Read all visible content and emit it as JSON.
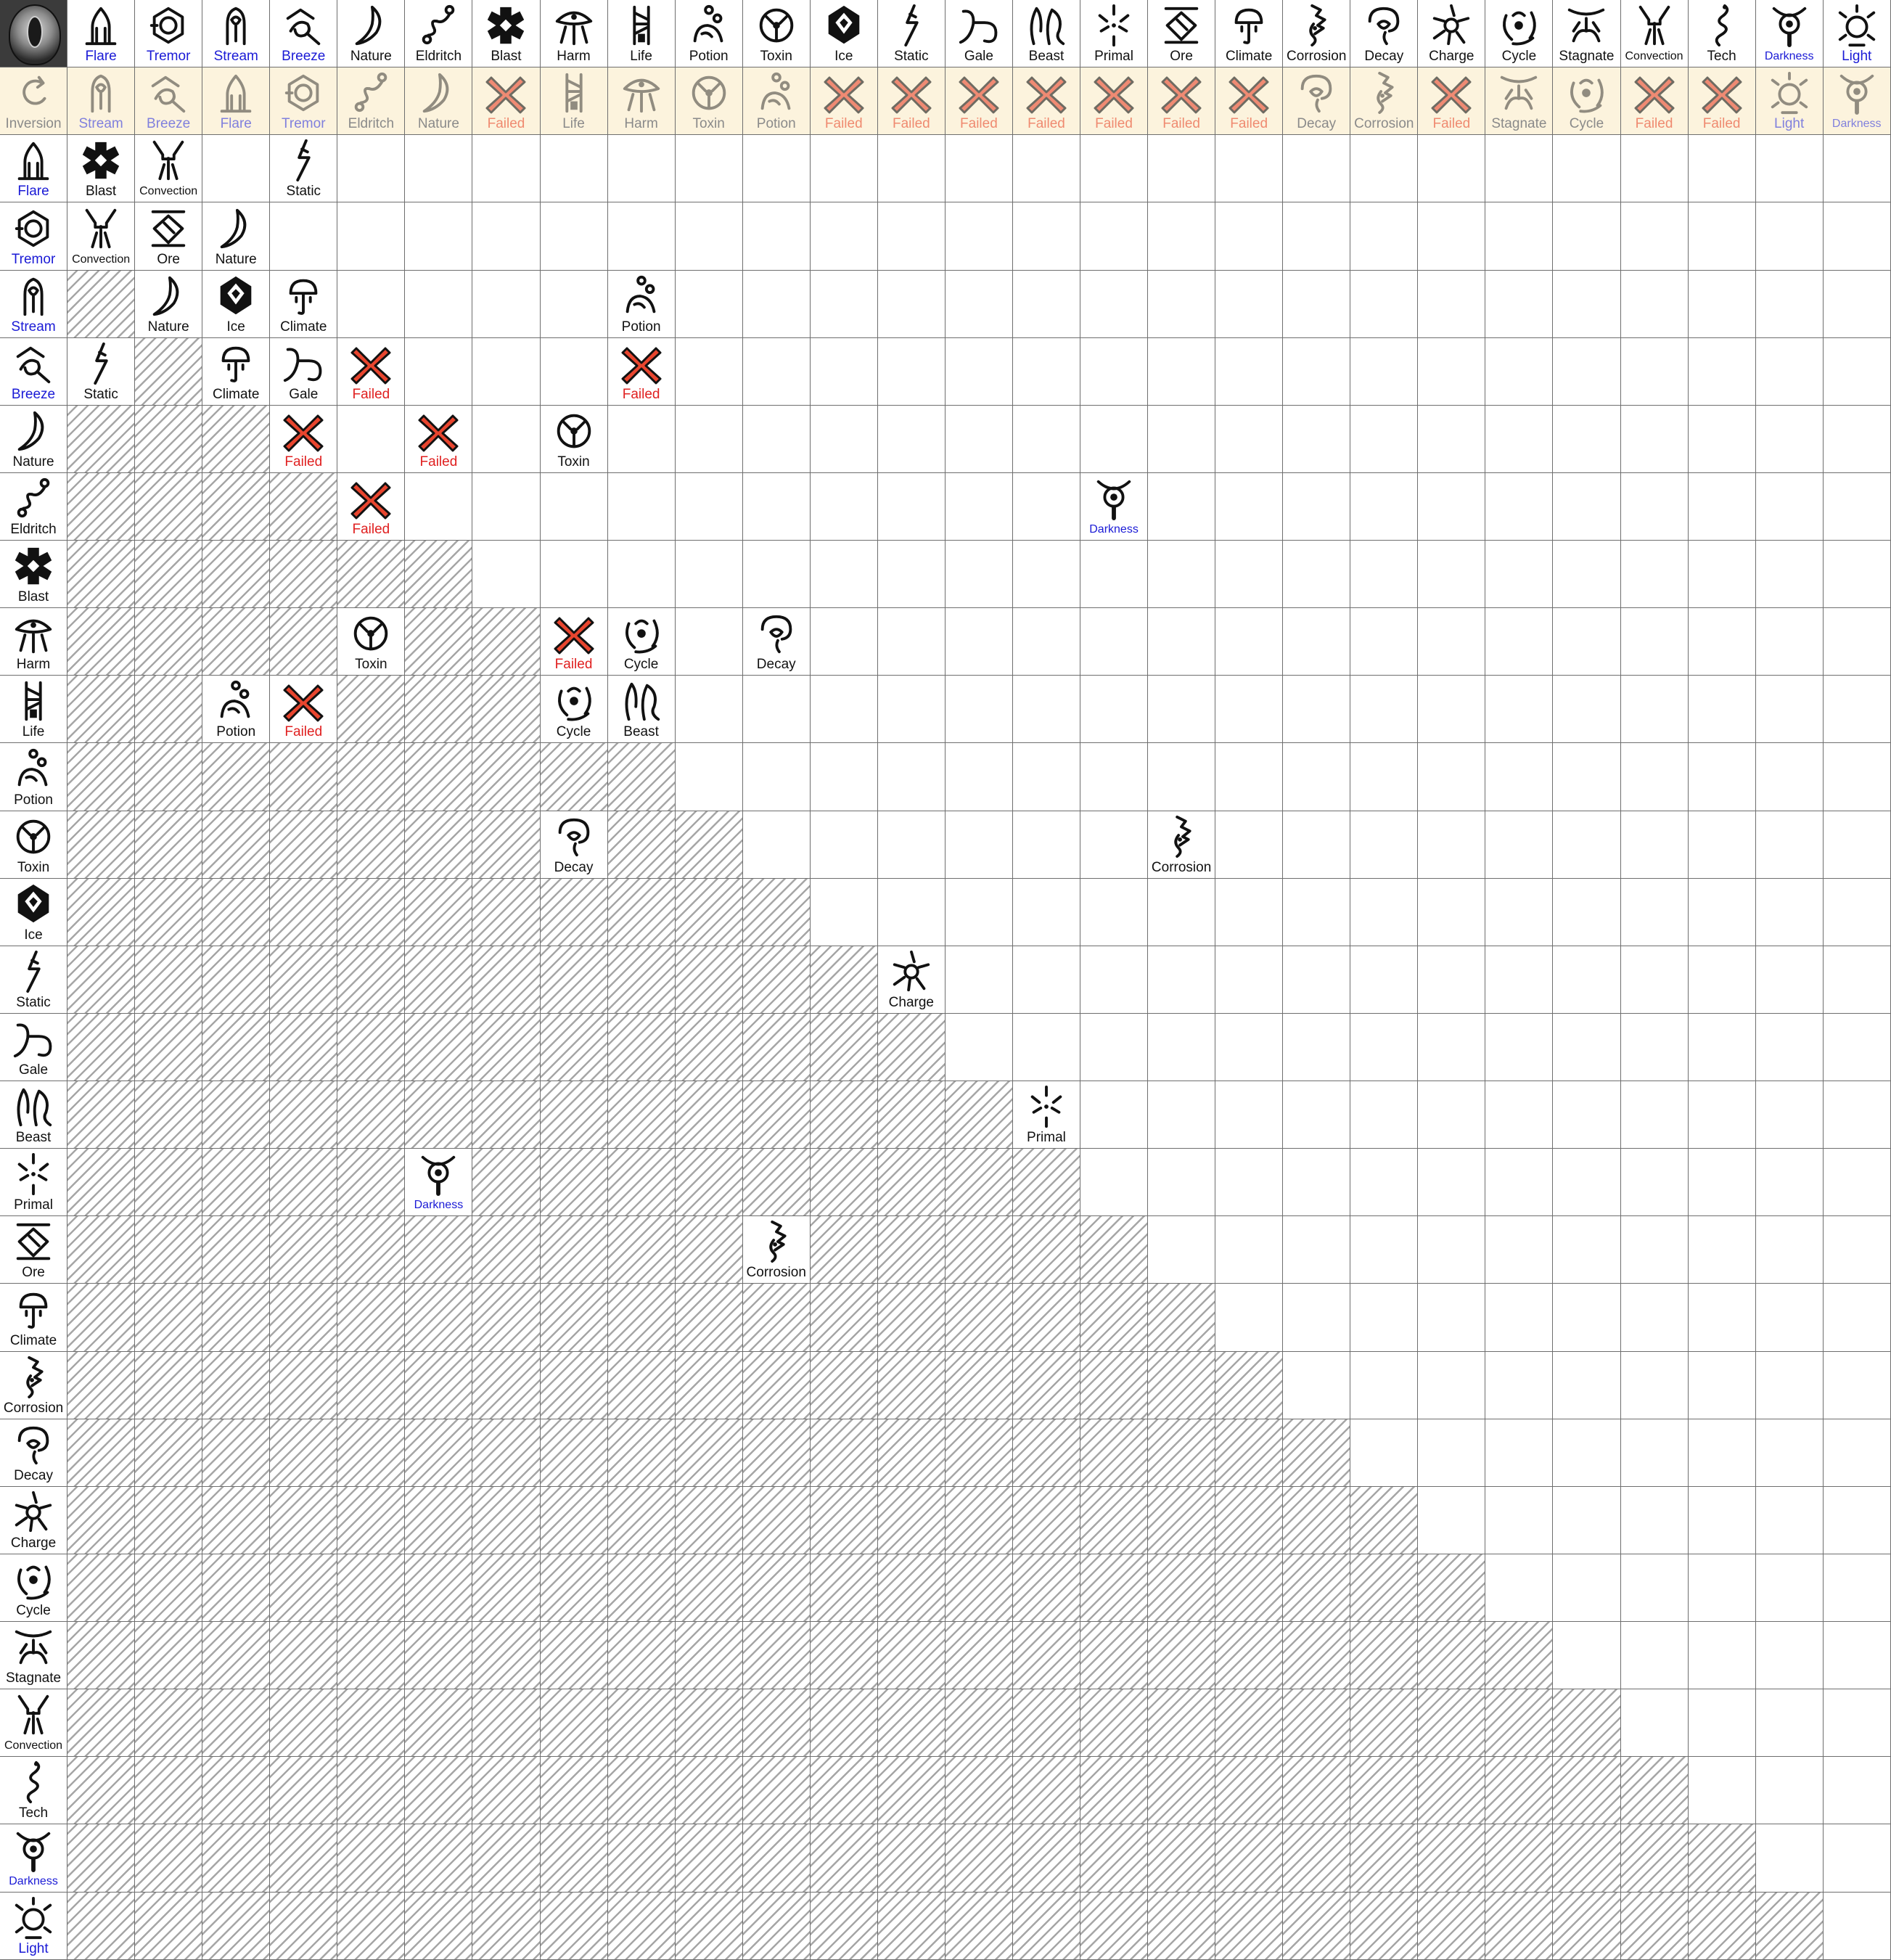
{
  "corner": {
    "icon": "eye-inversion-icon"
  },
  "elements": [
    {
      "name": "Flare",
      "color": "blue",
      "icon": "flare-icon"
    },
    {
      "name": "Tremor",
      "color": "blue",
      "icon": "tremor-icon"
    },
    {
      "name": "Stream",
      "color": "blue",
      "icon": "stream-icon"
    },
    {
      "name": "Breeze",
      "color": "blue",
      "icon": "breeze-icon"
    },
    {
      "name": "Nature",
      "color": "black",
      "icon": "nature-icon"
    },
    {
      "name": "Eldritch",
      "color": "black",
      "icon": "eldritch-icon"
    },
    {
      "name": "Blast",
      "color": "black",
      "icon": "blast-icon"
    },
    {
      "name": "Harm",
      "color": "black",
      "icon": "harm-icon"
    },
    {
      "name": "Life",
      "color": "black",
      "icon": "life-icon"
    },
    {
      "name": "Potion",
      "color": "black",
      "icon": "potion-icon"
    },
    {
      "name": "Toxin",
      "color": "black",
      "icon": "toxin-icon"
    },
    {
      "name": "Ice",
      "color": "black",
      "icon": "ice-icon"
    },
    {
      "name": "Static",
      "color": "black",
      "icon": "static-icon"
    },
    {
      "name": "Gale",
      "color": "black",
      "icon": "gale-icon"
    },
    {
      "name": "Beast",
      "color": "black",
      "icon": "beast-icon"
    },
    {
      "name": "Primal",
      "color": "black",
      "icon": "primal-icon"
    },
    {
      "name": "Ore",
      "color": "black",
      "icon": "ore-icon"
    },
    {
      "name": "Climate",
      "color": "black",
      "icon": "climate-icon"
    },
    {
      "name": "Corrosion",
      "color": "black",
      "icon": "corrosion-icon"
    },
    {
      "name": "Decay",
      "color": "black",
      "icon": "decay-icon"
    },
    {
      "name": "Charge",
      "color": "black",
      "icon": "charge-icon"
    },
    {
      "name": "Cycle",
      "color": "black",
      "icon": "cycle-icon"
    },
    {
      "name": "Stagnate",
      "color": "black",
      "icon": "stagnate-icon"
    },
    {
      "name": "Convection",
      "color": "black",
      "icon": "convection-icon"
    },
    {
      "name": "Tech",
      "color": "black",
      "icon": "tech-icon"
    },
    {
      "name": "Darkness",
      "color": "blue",
      "icon": "darkness-icon"
    },
    {
      "name": "Light",
      "color": "blue",
      "icon": "light-icon"
    }
  ],
  "inversion_row": {
    "label": "Inversion",
    "icon": "inversion-icon",
    "results": [
      "Stream",
      "Breeze",
      "Flare",
      "Tremor",
      "Eldritch",
      "Nature",
      "Failed",
      "Life",
      "Harm",
      "Toxin",
      "Potion",
      "Failed",
      "Failed",
      "Failed",
      "Failed",
      "Failed",
      "Failed",
      "Failed",
      "Decay",
      "Corrosion",
      "Failed",
      "Stagnate",
      "Cycle",
      "Failed",
      "Failed",
      "Light",
      "Darkness"
    ]
  },
  "combinations": [
    {
      "row": "Flare",
      "col": "Flare",
      "result": "Blast"
    },
    {
      "row": "Flare",
      "col": "Tremor",
      "result": "Convection"
    },
    {
      "row": "Flare",
      "col": "Breeze",
      "result": "Static"
    },
    {
      "row": "Tremor",
      "col": "Flare",
      "result": "Convection"
    },
    {
      "row": "Tremor",
      "col": "Tremor",
      "result": "Ore"
    },
    {
      "row": "Tremor",
      "col": "Stream",
      "result": "Nature"
    },
    {
      "row": "Stream",
      "col": "Tremor",
      "result": "Nature"
    },
    {
      "row": "Stream",
      "col": "Stream",
      "result": "Ice"
    },
    {
      "row": "Stream",
      "col": "Breeze",
      "result": "Climate"
    },
    {
      "row": "Stream",
      "col": "Life",
      "result": "Potion"
    },
    {
      "row": "Breeze",
      "col": "Flare",
      "result": "Static"
    },
    {
      "row": "Breeze",
      "col": "Stream",
      "result": "Climate"
    },
    {
      "row": "Breeze",
      "col": "Breeze",
      "result": "Gale"
    },
    {
      "row": "Breeze",
      "col": "Nature",
      "result": "Failed"
    },
    {
      "row": "Breeze",
      "col": "Life",
      "result": "Failed"
    },
    {
      "row": "Nature",
      "col": "Breeze",
      "result": "Failed"
    },
    {
      "row": "Nature",
      "col": "Eldritch",
      "result": "Failed"
    },
    {
      "row": "Nature",
      "col": "Harm",
      "result": "Toxin"
    },
    {
      "row": "Eldritch",
      "col": "Nature",
      "result": "Failed"
    },
    {
      "row": "Eldritch",
      "col": "Primal",
      "result": "Darkness"
    },
    {
      "row": "Harm",
      "col": "Nature",
      "result": "Toxin"
    },
    {
      "row": "Harm",
      "col": "Harm",
      "result": "Failed"
    },
    {
      "row": "Harm",
      "col": "Life",
      "result": "Cycle"
    },
    {
      "row": "Harm",
      "col": "Toxin",
      "result": "Decay"
    },
    {
      "row": "Life",
      "col": "Stream",
      "result": "Potion"
    },
    {
      "row": "Life",
      "col": "Breeze",
      "result": "Failed"
    },
    {
      "row": "Life",
      "col": "Harm",
      "result": "Cycle"
    },
    {
      "row": "Life",
      "col": "Life",
      "result": "Beast"
    },
    {
      "row": "Toxin",
      "col": "Harm",
      "result": "Decay"
    },
    {
      "row": "Toxin",
      "col": "Ore",
      "result": "Corrosion"
    },
    {
      "row": "Static",
      "col": "Static",
      "result": "Charge"
    },
    {
      "row": "Beast",
      "col": "Beast",
      "result": "Primal"
    },
    {
      "row": "Primal",
      "col": "Eldritch",
      "result": "Darkness"
    },
    {
      "row": "Ore",
      "col": "Toxin",
      "result": "Corrosion"
    }
  ],
  "colors": {
    "blue_label": "#1a1ad6",
    "failed_label": "#e02020",
    "failed_mark": "#e8452e",
    "inversion_bg": "#fcf3dd",
    "grid_line": "#6e6e6e",
    "hatch": "#a6a6a6"
  }
}
